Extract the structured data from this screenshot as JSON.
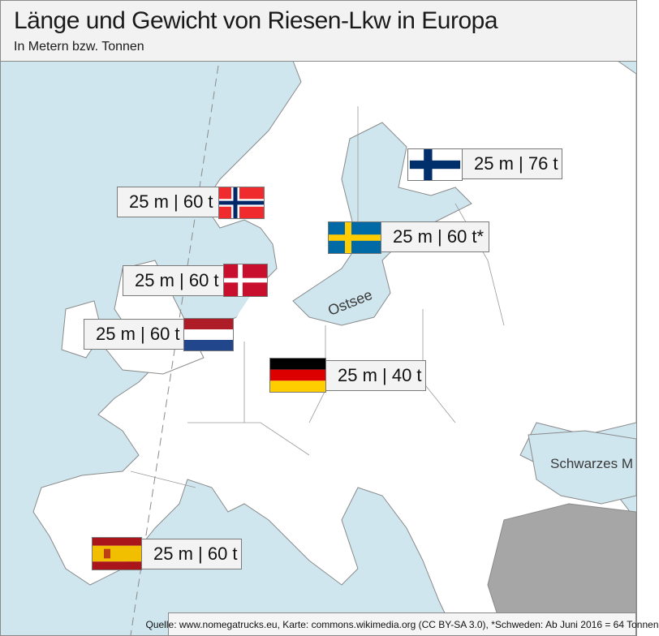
{
  "header": {
    "title": "Länge und Gewicht von Riesen-Lkw in Europa",
    "subtitle": "In Metern bzw. Tonnen"
  },
  "map": {
    "sea_color": "#cfe6ef",
    "land_color": "#ffffff",
    "non_eu_land_color": "#a6a6a6",
    "border_color": "#8a8a8a",
    "sea_labels": {
      "ostsee": "Ostsee",
      "schwarzes_meer": "Schwarzes M"
    }
  },
  "countries": {
    "finland": {
      "label": "25 m | 76 t",
      "flag": "finland-flag"
    },
    "norway": {
      "label": "25 m | 60 t",
      "flag": "norway-flag"
    },
    "sweden": {
      "label": "25 m | 60 t*",
      "flag": "sweden-flag"
    },
    "denmark": {
      "label": "25 m | 60 t",
      "flag": "denmark-flag"
    },
    "netherlands": {
      "label": "25 m | 60 t",
      "flag": "netherlands-flag"
    },
    "germany": {
      "label": "25 m | 40 t",
      "flag": "germany-flag"
    },
    "spain": {
      "label": "25 m | 60 t",
      "flag": "spain-flag"
    }
  },
  "footer": {
    "source": "Quelle: www.nomegatrucks.eu, Karte: commons.wikimedia.org (CC BY-SA 3.0), *Schweden: Ab Juni 2016 = 64 Tonnen"
  }
}
